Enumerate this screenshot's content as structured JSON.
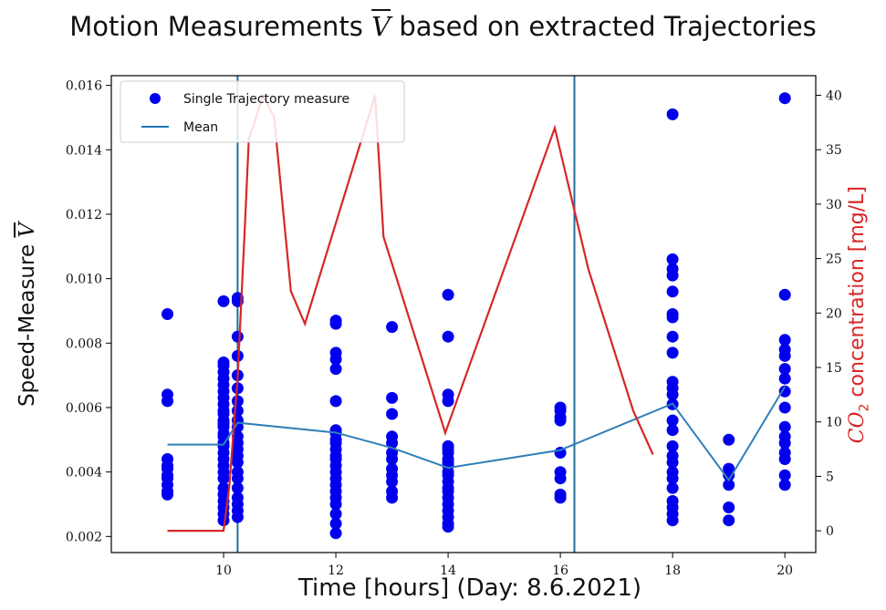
{
  "chart_data": {
    "type": "scatter",
    "title": "Motion Measurements",
    "title_symbol": "V",
    "title_rest": "based on extracted Trajectories",
    "xlabel": "Time [hours] (Day: 8.6.2021)",
    "ylabel": "Speed-Measure",
    "ylabel_symbol": "V",
    "ylabel_right_prefix": "CO",
    "ylabel_right_sub": "2",
    "ylabel_right_suffix": "concentration [mg/L]",
    "xlim": [
      8.0,
      20.55
    ],
    "ylim": [
      0.0015,
      0.0163
    ],
    "y2lim": [
      -2.0,
      41.8
    ],
    "x_ticks": [
      10,
      12,
      14,
      16,
      18,
      20
    ],
    "y_ticks": [
      "0.002",
      "0.004",
      "0.006",
      "0.008",
      "0.010",
      "0.012",
      "0.014",
      "0.016"
    ],
    "y2_ticks": [
      0,
      5,
      10,
      15,
      20,
      25,
      30,
      35,
      40
    ],
    "vlines": [
      10.25,
      16.25
    ],
    "vline_color": "#1f6f9a",
    "legend": {
      "position": "top-left",
      "entries": [
        {
          "label": "Single Trajectory measure",
          "marker": "dot",
          "color": "#0000ee"
        },
        {
          "label": "Mean",
          "marker": "line",
          "color": "#1f77b4"
        }
      ]
    },
    "series": [
      {
        "name": "Single Trajectory measure",
        "kind": "scatter",
        "color": "#0000ee",
        "points": [
          [
            9,
            0.0089
          ],
          [
            9,
            0.0064
          ],
          [
            9,
            0.0062
          ],
          [
            9,
            0.0044
          ],
          [
            9,
            0.0042
          ],
          [
            9,
            0.0041
          ],
          [
            9,
            0.0039
          ],
          [
            9,
            0.0038
          ],
          [
            9,
            0.0036
          ],
          [
            9,
            0.0034
          ],
          [
            9,
            0.0033
          ],
          [
            10,
            0.0093
          ],
          [
            10,
            0.0074
          ],
          [
            10,
            0.0073
          ],
          [
            10,
            0.0071
          ],
          [
            10,
            0.0069
          ],
          [
            10,
            0.0067
          ],
          [
            10,
            0.0065
          ],
          [
            10,
            0.0063
          ],
          [
            10,
            0.0061
          ],
          [
            10,
            0.0059
          ],
          [
            10,
            0.0058
          ],
          [
            10,
            0.0056
          ],
          [
            10,
            0.0055
          ],
          [
            10,
            0.0054
          ],
          [
            10,
            0.0052
          ],
          [
            10,
            0.0051
          ],
          [
            10,
            0.0049
          ],
          [
            10,
            0.0048
          ],
          [
            10,
            0.0046
          ],
          [
            10,
            0.0044
          ],
          [
            10,
            0.0042
          ],
          [
            10,
            0.004
          ],
          [
            10,
            0.0038
          ],
          [
            10,
            0.0035
          ],
          [
            10,
            0.0033
          ],
          [
            10,
            0.0031
          ],
          [
            10,
            0.0029
          ],
          [
            10,
            0.0027
          ],
          [
            10,
            0.0025
          ],
          [
            10.25,
            0.0094
          ],
          [
            10.25,
            0.0093
          ],
          [
            10.25,
            0.0082
          ],
          [
            10.25,
            0.0076
          ],
          [
            10.25,
            0.007
          ],
          [
            10.25,
            0.0066
          ],
          [
            10.25,
            0.0062
          ],
          [
            10.25,
            0.0059
          ],
          [
            10.25,
            0.0056
          ],
          [
            10.25,
            0.0054
          ],
          [
            10.25,
            0.0051
          ],
          [
            10.25,
            0.0049
          ],
          [
            10.25,
            0.0047
          ],
          [
            10.25,
            0.0045
          ],
          [
            10.25,
            0.0043
          ],
          [
            10.25,
            0.004
          ],
          [
            10.25,
            0.0038
          ],
          [
            10.25,
            0.0035
          ],
          [
            10.25,
            0.0032
          ],
          [
            10.25,
            0.003
          ],
          [
            10.25,
            0.0028
          ],
          [
            10.25,
            0.0026
          ],
          [
            12,
            0.0087
          ],
          [
            12,
            0.0086
          ],
          [
            12,
            0.0077
          ],
          [
            12,
            0.0075
          ],
          [
            12,
            0.0072
          ],
          [
            12,
            0.0062
          ],
          [
            12,
            0.0053
          ],
          [
            12,
            0.0052
          ],
          [
            12,
            0.005
          ],
          [
            12,
            0.0049
          ],
          [
            12,
            0.0047
          ],
          [
            12,
            0.0045
          ],
          [
            12,
            0.0044
          ],
          [
            12,
            0.0042
          ],
          [
            12,
            0.004
          ],
          [
            12,
            0.0038
          ],
          [
            12,
            0.0036
          ],
          [
            12,
            0.0034
          ],
          [
            12,
            0.0032
          ],
          [
            12,
            0.003
          ],
          [
            12,
            0.0027
          ],
          [
            12,
            0.0024
          ],
          [
            12,
            0.0021
          ],
          [
            13,
            0.0085
          ],
          [
            13,
            0.0063
          ],
          [
            13,
            0.0058
          ],
          [
            13,
            0.0051
          ],
          [
            13,
            0.0049
          ],
          [
            13,
            0.0046
          ],
          [
            13,
            0.0044
          ],
          [
            13,
            0.0041
          ],
          [
            13,
            0.0039
          ],
          [
            13,
            0.0037
          ],
          [
            13,
            0.0034
          ],
          [
            13,
            0.0032
          ],
          [
            14,
            0.0095
          ],
          [
            14,
            0.0082
          ],
          [
            14,
            0.0064
          ],
          [
            14,
            0.0062
          ],
          [
            14,
            0.0048
          ],
          [
            14,
            0.0047
          ],
          [
            14,
            0.0046
          ],
          [
            14,
            0.0044
          ],
          [
            14,
            0.0043
          ],
          [
            14,
            0.0042
          ],
          [
            14,
            0.004
          ],
          [
            14,
            0.0039
          ],
          [
            14,
            0.0037
          ],
          [
            14,
            0.0035
          ],
          [
            14,
            0.0034
          ],
          [
            14,
            0.0032
          ],
          [
            14,
            0.003
          ],
          [
            14,
            0.0028
          ],
          [
            14,
            0.0026
          ],
          [
            14,
            0.0024
          ],
          [
            14,
            0.0023
          ],
          [
            16,
            0.006
          ],
          [
            16,
            0.0059
          ],
          [
            16,
            0.0057
          ],
          [
            16,
            0.0056
          ],
          [
            16,
            0.0046
          ],
          [
            16,
            0.004
          ],
          [
            16,
            0.0038
          ],
          [
            16,
            0.0033
          ],
          [
            16,
            0.0032
          ],
          [
            18,
            0.0151
          ],
          [
            18,
            0.0106
          ],
          [
            18,
            0.0103
          ],
          [
            18,
            0.0101
          ],
          [
            18,
            0.0096
          ],
          [
            18,
            0.0089
          ],
          [
            18,
            0.0088
          ],
          [
            18,
            0.0082
          ],
          [
            18,
            0.0077
          ],
          [
            18,
            0.0068
          ],
          [
            18,
            0.0066
          ],
          [
            18,
            0.0064
          ],
          [
            18,
            0.0061
          ],
          [
            18,
            0.0056
          ],
          [
            18,
            0.0053
          ],
          [
            18,
            0.0048
          ],
          [
            18,
            0.0045
          ],
          [
            18,
            0.0043
          ],
          [
            18,
            0.004
          ],
          [
            18,
            0.0038
          ],
          [
            18,
            0.0035
          ],
          [
            18,
            0.0031
          ],
          [
            18,
            0.0029
          ],
          [
            18,
            0.0027
          ],
          [
            18,
            0.0025
          ],
          [
            19,
            0.005
          ],
          [
            19,
            0.0041
          ],
          [
            19,
            0.0039
          ],
          [
            19,
            0.0036
          ],
          [
            19,
            0.0029
          ],
          [
            19,
            0.0025
          ],
          [
            20,
            0.0156
          ],
          [
            20,
            0.0095
          ],
          [
            20,
            0.0081
          ],
          [
            20,
            0.0078
          ],
          [
            20,
            0.0076
          ],
          [
            20,
            0.0072
          ],
          [
            20,
            0.0069
          ],
          [
            20,
            0.0065
          ],
          [
            20,
            0.006
          ],
          [
            20,
            0.0054
          ],
          [
            20,
            0.0051
          ],
          [
            20,
            0.0049
          ],
          [
            20,
            0.0046
          ],
          [
            20,
            0.0044
          ],
          [
            20,
            0.0039
          ],
          [
            20,
            0.0036
          ]
        ]
      },
      {
        "name": "Mean",
        "kind": "line",
        "axis": "left",
        "color": "#2f7fb8",
        "points": [
          [
            9,
            0.00485
          ],
          [
            10,
            0.00485
          ],
          [
            10.25,
            0.00553
          ],
          [
            12,
            0.00522
          ],
          [
            13,
            0.00475
          ],
          [
            14,
            0.00413
          ],
          [
            16,
            0.00468
          ],
          [
            18,
            0.00612
          ],
          [
            19,
            0.00375
          ],
          [
            20,
            0.00665
          ]
        ]
      },
      {
        "name": "CO2 concentration",
        "kind": "line",
        "axis": "right",
        "color": "#d62728",
        "points": [
          [
            9,
            0
          ],
          [
            9.5,
            0
          ],
          [
            10,
            0
          ],
          [
            10.1,
            4
          ],
          [
            10.25,
            14
          ],
          [
            10.38,
            28
          ],
          [
            10.45,
            36
          ],
          [
            10.55,
            37.5
          ],
          [
            10.7,
            40
          ],
          [
            10.9,
            38
          ],
          [
            11.2,
            22
          ],
          [
            11.45,
            19
          ],
          [
            12.7,
            40
          ],
          [
            12.85,
            27
          ],
          [
            13.95,
            9
          ],
          [
            15.9,
            37
          ],
          [
            16.5,
            24
          ],
          [
            17.3,
            11
          ],
          [
            17.65,
            7
          ]
        ]
      }
    ]
  }
}
